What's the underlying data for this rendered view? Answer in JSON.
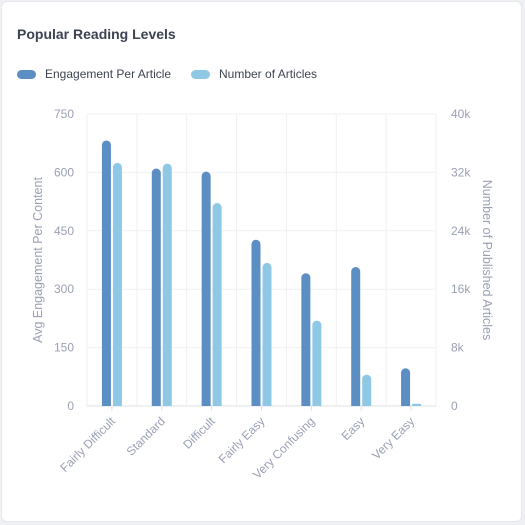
{
  "chart_data": {
    "type": "bar",
    "title": "Popular Reading Levels",
    "categories": [
      "Fairly Difficult",
      "Standard",
      "Difficult",
      "Fairly Easy",
      "Very Confusing",
      "Easy",
      "Very Easy"
    ],
    "series": [
      {
        "name": "Engagement Per Article",
        "axis": "left",
        "color": "#5b8ec3",
        "values": [
          682,
          610,
          602,
          427,
          341,
          357,
          97
        ]
      },
      {
        "name": "Number of Articles",
        "axis": "right",
        "color": "#8ec8e4",
        "values": [
          33300,
          33200,
          27800,
          19600,
          11700,
          4300,
          300
        ]
      }
    ],
    "ylabel": "Avg Engagement Per Content",
    "ylabel_right": "Number of Published Articles",
    "ylim": [
      0,
      750
    ],
    "ylim_right": [
      0,
      40000
    ],
    "yticks": [
      "0",
      "150",
      "300",
      "450",
      "600",
      "750"
    ],
    "yticks_right": [
      "0",
      "8k",
      "16k",
      "24k",
      "32k",
      "40k"
    ],
    "grid": true,
    "legend_position": "top-left"
  }
}
